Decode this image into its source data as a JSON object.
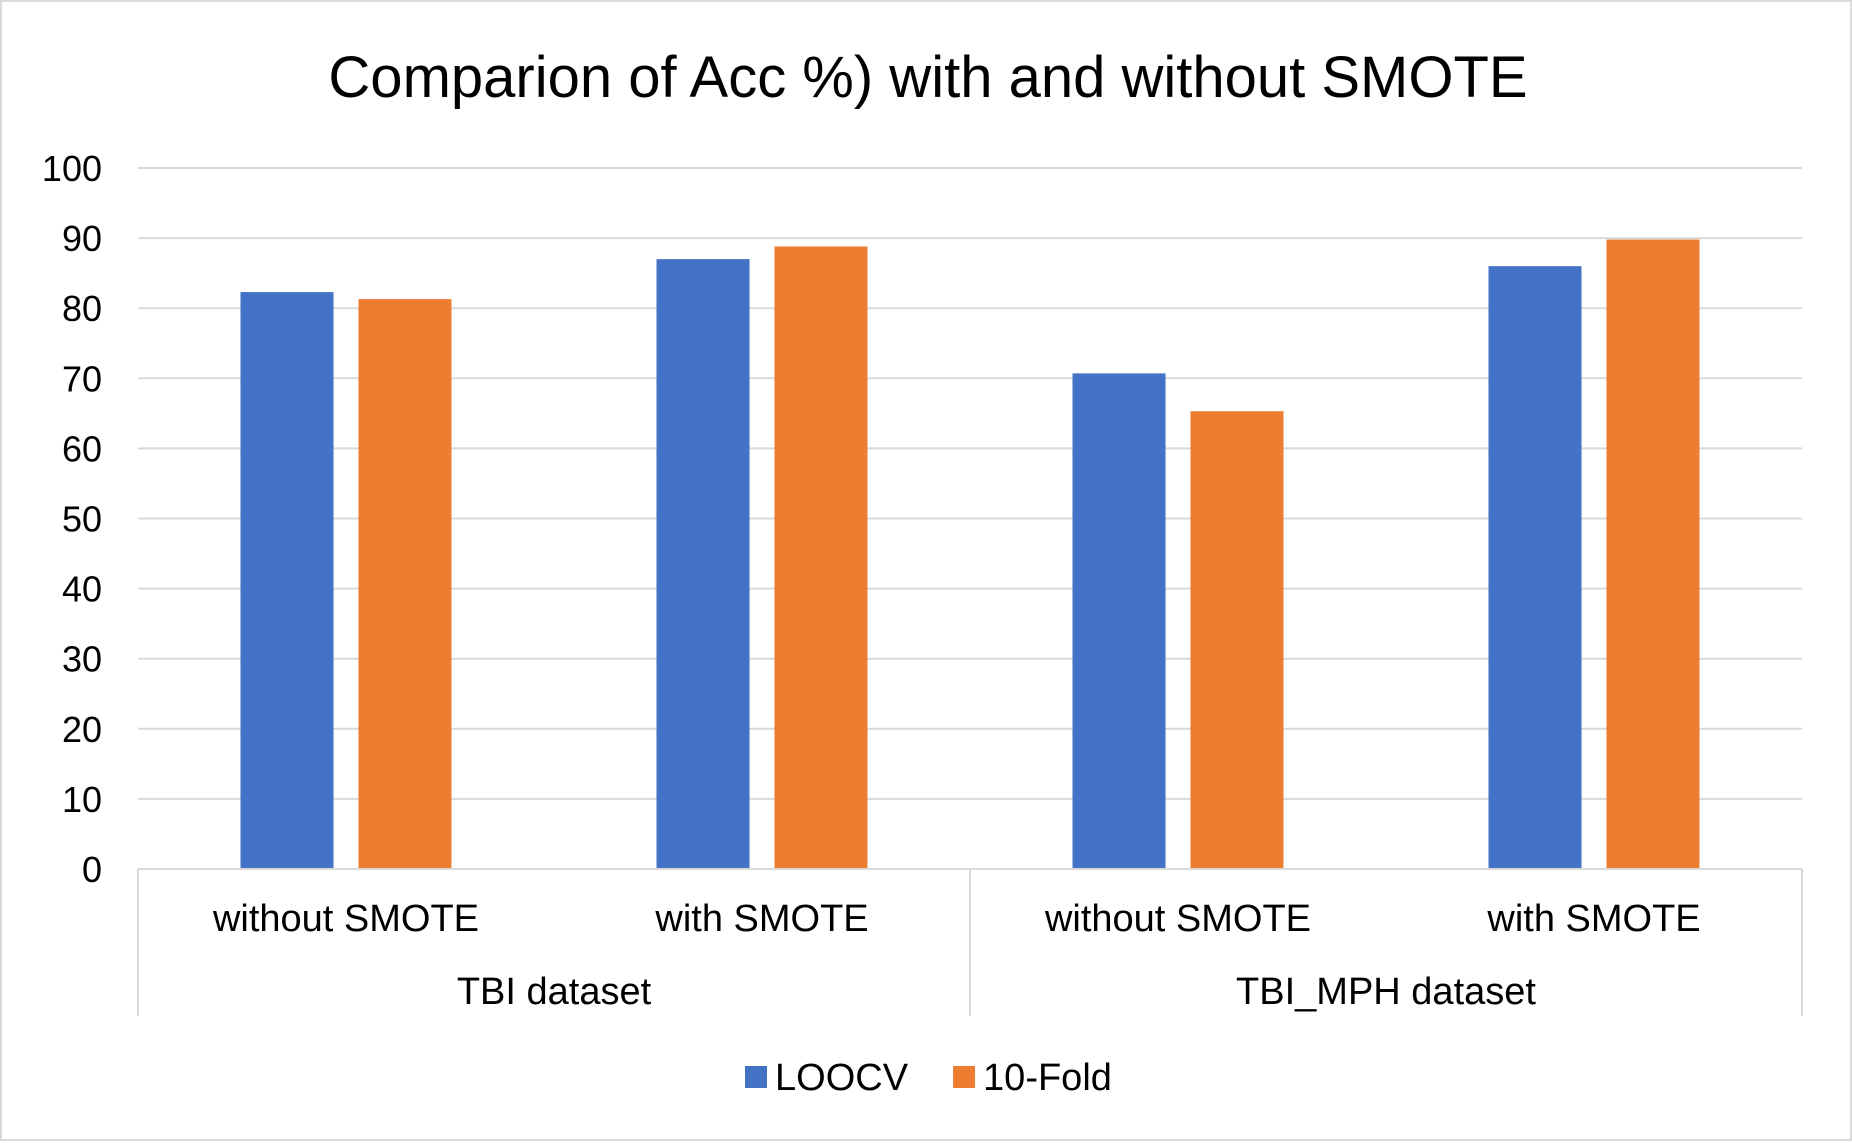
{
  "chart_data": {
    "type": "bar",
    "title": "Comparion of Acc %) with and without SMOTE",
    "xlabel": "",
    "ylabel": "",
    "ylim": [
      0,
      100
    ],
    "yticks": [
      0,
      10,
      20,
      30,
      40,
      50,
      60,
      70,
      80,
      90,
      100
    ],
    "grid": true,
    "legend_position": "bottom",
    "groups": [
      {
        "label": "TBI dataset",
        "categories": [
          "without SMOTE",
          "with SMOTE"
        ]
      },
      {
        "label": "TBI_MPH dataset",
        "categories": [
          "without SMOTE",
          "with SMOTE"
        ]
      }
    ],
    "categories": [
      "without SMOTE",
      "with SMOTE",
      "without SMOTE",
      "with SMOTE"
    ],
    "series": [
      {
        "name": "LOOCV",
        "color": "#4472c4",
        "values": [
          82.3,
          87.0,
          70.7,
          86.0
        ]
      },
      {
        "name": "10-Fold",
        "color": "#ed7d31",
        "values": [
          81.3,
          88.8,
          65.3,
          89.8
        ]
      }
    ]
  }
}
